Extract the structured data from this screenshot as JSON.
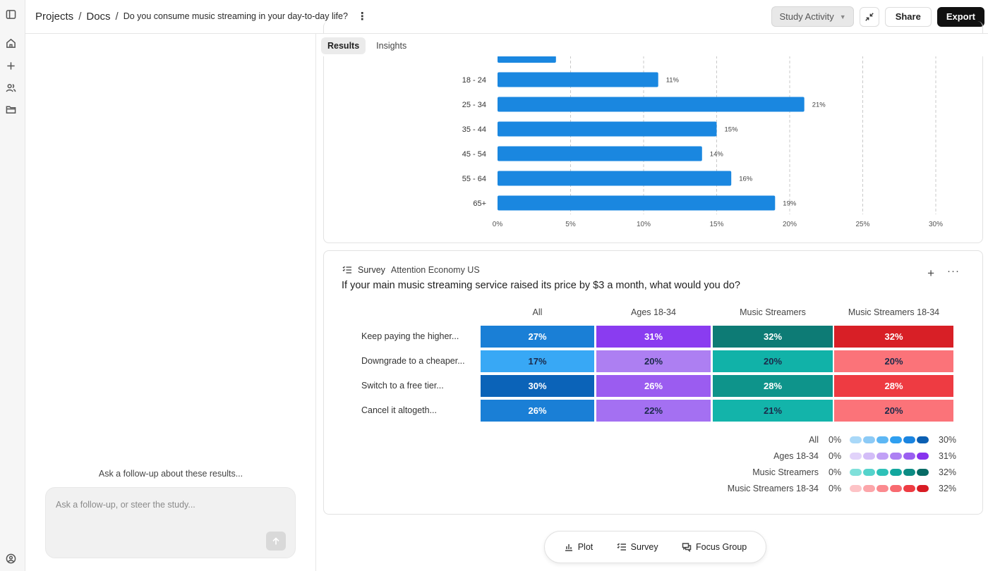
{
  "header": {
    "crumb_projects": "Projects",
    "crumb_docs": "Docs",
    "crumb_current": "Do you consume music streaming in your day-to-day life?",
    "study_activity": "Study Activity",
    "share": "Share",
    "export": "Export"
  },
  "rail": {
    "icons": [
      "sidebar-toggle-icon",
      "home-icon",
      "plus-icon",
      "users-icon",
      "folder-icon",
      "user-circle-icon"
    ]
  },
  "chat": {
    "prompt": "Ask a follow-up about these results...",
    "placeholder": "Ask a follow-up, or steer the study..."
  },
  "tabs": [
    {
      "label": "Results",
      "active": true
    },
    {
      "label": "Insights",
      "active": false
    }
  ],
  "chart_data": {
    "type": "bar",
    "orientation": "horizontal",
    "categories": [
      "18 - 24",
      "25 - 34",
      "35 - 44",
      "45 - 54",
      "55 - 64",
      "65+"
    ],
    "values": [
      11,
      21,
      15,
      14,
      16,
      19
    ],
    "value_labels": [
      "11%",
      "21%",
      "15%",
      "14%",
      "16%",
      "19%"
    ],
    "partial_bar_above_value": 4,
    "xlim": [
      0,
      30
    ],
    "xticks": [
      "0%",
      "5%",
      "10%",
      "15%",
      "20%",
      "25%",
      "30%"
    ],
    "grid": true,
    "color": "#1a87e0"
  },
  "survey": {
    "tag": "Survey",
    "source": "Attention Economy US",
    "question": "If your main music streaming service raised its price by $3 a month, what would you do?",
    "columns": [
      "All",
      "Ages 18-34",
      "Music Streamers",
      "Music Streamers 18-34"
    ],
    "rows": [
      {
        "label": "Keep paying the higher...",
        "values": [
          "27%",
          "31%",
          "32%",
          "32%"
        ]
      },
      {
        "label": "Downgrade to a cheaper...",
        "values": [
          "17%",
          "20%",
          "20%",
          "20%"
        ]
      },
      {
        "label": "Switch to a free tier...",
        "values": [
          "30%",
          "26%",
          "28%",
          "28%"
        ]
      },
      {
        "label": "Cancel it altogeth...",
        "values": [
          "26%",
          "22%",
          "21%",
          "20%"
        ]
      }
    ],
    "cell_colors": [
      [
        "#1a7fd6",
        "#8a3cf0",
        "#0d7b75",
        "#d81f26"
      ],
      [
        "#38a8f5",
        "#ad7ff2",
        "#11b2a8",
        "#fb7379"
      ],
      [
        "#0b63b8",
        "#9b5cf0",
        "#0e948b",
        "#ee3b42"
      ],
      [
        "#1a7fd6",
        "#a470f2",
        "#13b4aa",
        "#fb7379"
      ]
    ],
    "legend": [
      {
        "name": "All",
        "lo": "0%",
        "hi": "30%",
        "colors": [
          "#a9d8f8",
          "#8ccaf6",
          "#5db7f4",
          "#2f9ff0",
          "#1a84e0",
          "#0b5fb2"
        ]
      },
      {
        "name": "Ages 18-34",
        "lo": "0%",
        "hi": "31%",
        "colors": [
          "#e1d2fa",
          "#d3bdf8",
          "#c1a1f6",
          "#ad80f3",
          "#9a5ff1",
          "#8733ee"
        ]
      },
      {
        "name": "Music Streamers",
        "lo": "0%",
        "hi": "32%",
        "colors": [
          "#7fe0da",
          "#54d3cb",
          "#2ec1b8",
          "#13a79e",
          "#0c8c84",
          "#076b65"
        ]
      },
      {
        "name": "Music Streamers 18-34",
        "lo": "0%",
        "hi": "32%",
        "colors": [
          "#fdc3c6",
          "#fca6aa",
          "#fb8a8f",
          "#f86a70",
          "#ee3c43",
          "#d81c24"
        ]
      }
    ]
  },
  "bottom_bar": {
    "plot": "Plot",
    "survey": "Survey",
    "focus_group": "Focus Group"
  }
}
